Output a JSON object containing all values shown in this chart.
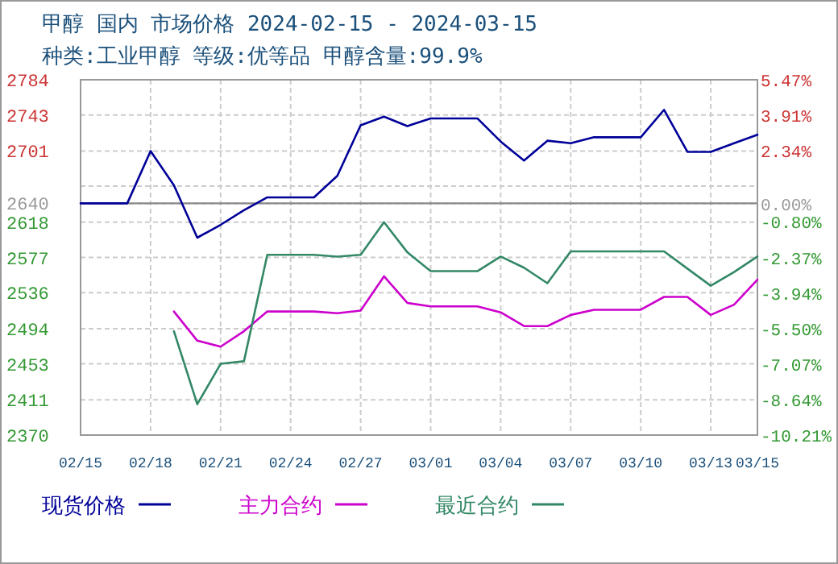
{
  "chart_data": {
    "type": "line",
    "title": "甲醇 国内 市场价格 2024-02-15 - 2024-03-15",
    "subtitle": "种类:工业甲醇 等级:优等品 甲醇含量:99.9%",
    "x": [
      "2024-02-15",
      "2024-02-16",
      "2024-02-17",
      "2024-02-18",
      "2024-02-19",
      "2024-02-20",
      "2024-02-21",
      "2024-02-22",
      "2024-02-23",
      "2024-02-24",
      "2024-02-25",
      "2024-02-26",
      "2024-02-27",
      "2024-02-28",
      "2024-02-29",
      "2024-03-01",
      "2024-03-02",
      "2024-03-03",
      "2024-03-04",
      "2024-03-05",
      "2024-03-06",
      "2024-03-07",
      "2024-03-08",
      "2024-03-09",
      "2024-03-10",
      "2024-03-11",
      "2024-03-12",
      "2024-03-13",
      "2024-03-14",
      "2024-03-15"
    ],
    "series": [
      {
        "name": "现货价格",
        "color": "#000099",
        "values": [
          2640,
          2640,
          2640,
          2701,
          2661,
          2600,
          2615,
          2632,
          2647,
          2647,
          2647,
          2672,
          2731,
          2741,
          2730,
          2739,
          2739,
          2739,
          2712,
          2690,
          2713,
          2710,
          2717,
          2717,
          2717,
          2749,
          2700,
          2700,
          2710,
          2720
        ]
      },
      {
        "name": "主力合约",
        "color": "#cc00cc",
        "values": [
          null,
          null,
          null,
          null,
          2514,
          2480,
          2473,
          2491,
          2514,
          2514,
          2514,
          2512,
          2515,
          2555,
          2524,
          2520,
          2520,
          2520,
          2513,
          2497,
          2497,
          2510,
          2516,
          2516,
          2516,
          2531,
          2531,
          2510,
          2522,
          2551
        ]
      },
      {
        "name": "最近合约",
        "color": "#338866",
        "values": [
          null,
          null,
          null,
          null,
          2491,
          2406,
          2453,
          2456,
          2580,
          2580,
          2580,
          2578,
          2580,
          2618,
          2583,
          2561,
          2561,
          2561,
          2578,
          2565,
          2547,
          2584,
          2584,
          2584,
          2584,
          2584,
          2564,
          2544,
          2560,
          2578
        ]
      }
    ],
    "xlim": [
      "2024-02-15",
      "2024-03-15"
    ],
    "xticks": [
      {
        "value": "2024-02-15",
        "label": "02/15"
      },
      {
        "value": "2024-02-18",
        "label": "02/18"
      },
      {
        "value": "2024-02-21",
        "label": "02/21"
      },
      {
        "value": "2024-02-24",
        "label": "02/24"
      },
      {
        "value": "2024-02-27",
        "label": "02/27"
      },
      {
        "value": "2024-03-01",
        "label": "03/01"
      },
      {
        "value": "2024-03-04",
        "label": "03/04"
      },
      {
        "value": "2024-03-07",
        "label": "03/07"
      },
      {
        "value": "2024-03-10",
        "label": "03/10"
      },
      {
        "value": "2024-03-13",
        "label": "03/13"
      },
      {
        "value": "2024-03-15",
        "label": "03/15"
      }
    ],
    "ylim": [
      2370,
      2784
    ],
    "yticks": [
      2370,
      2411,
      2453,
      2494,
      2536,
      2577,
      2618,
      2640,
      {
        "value": 2660,
        "label": null
      },
      2701,
      2743,
      2784
    ],
    "y2lim": [
      -10.21,
      5.47
    ],
    "y2ticks": [
      {
        "value": -10.21,
        "label": "-10.21%"
      },
      {
        "value": -8.64,
        "label": "-8.64%"
      },
      {
        "value": -7.07,
        "label": "-7.07%"
      },
      {
        "value": -5.5,
        "label": "-5.50%"
      },
      {
        "value": -3.94,
        "label": "-3.94%"
      },
      {
        "value": -2.37,
        "label": "-2.37%"
      },
      {
        "value": -0.8,
        "label": "-0.80%"
      },
      {
        "value": 0,
        "label": "0.00%"
      },
      {
        "value": 2.34,
        "label": "2.34%"
      },
      {
        "value": 3.91,
        "label": "3.91%"
      },
      {
        "value": 5.47,
        "label": "5.47%"
      }
    ],
    "ref_lines": [
      {
        "axis": "y",
        "value": 2640,
        "color": "#888888"
      }
    ],
    "grid": true,
    "legend": "bottom"
  }
}
